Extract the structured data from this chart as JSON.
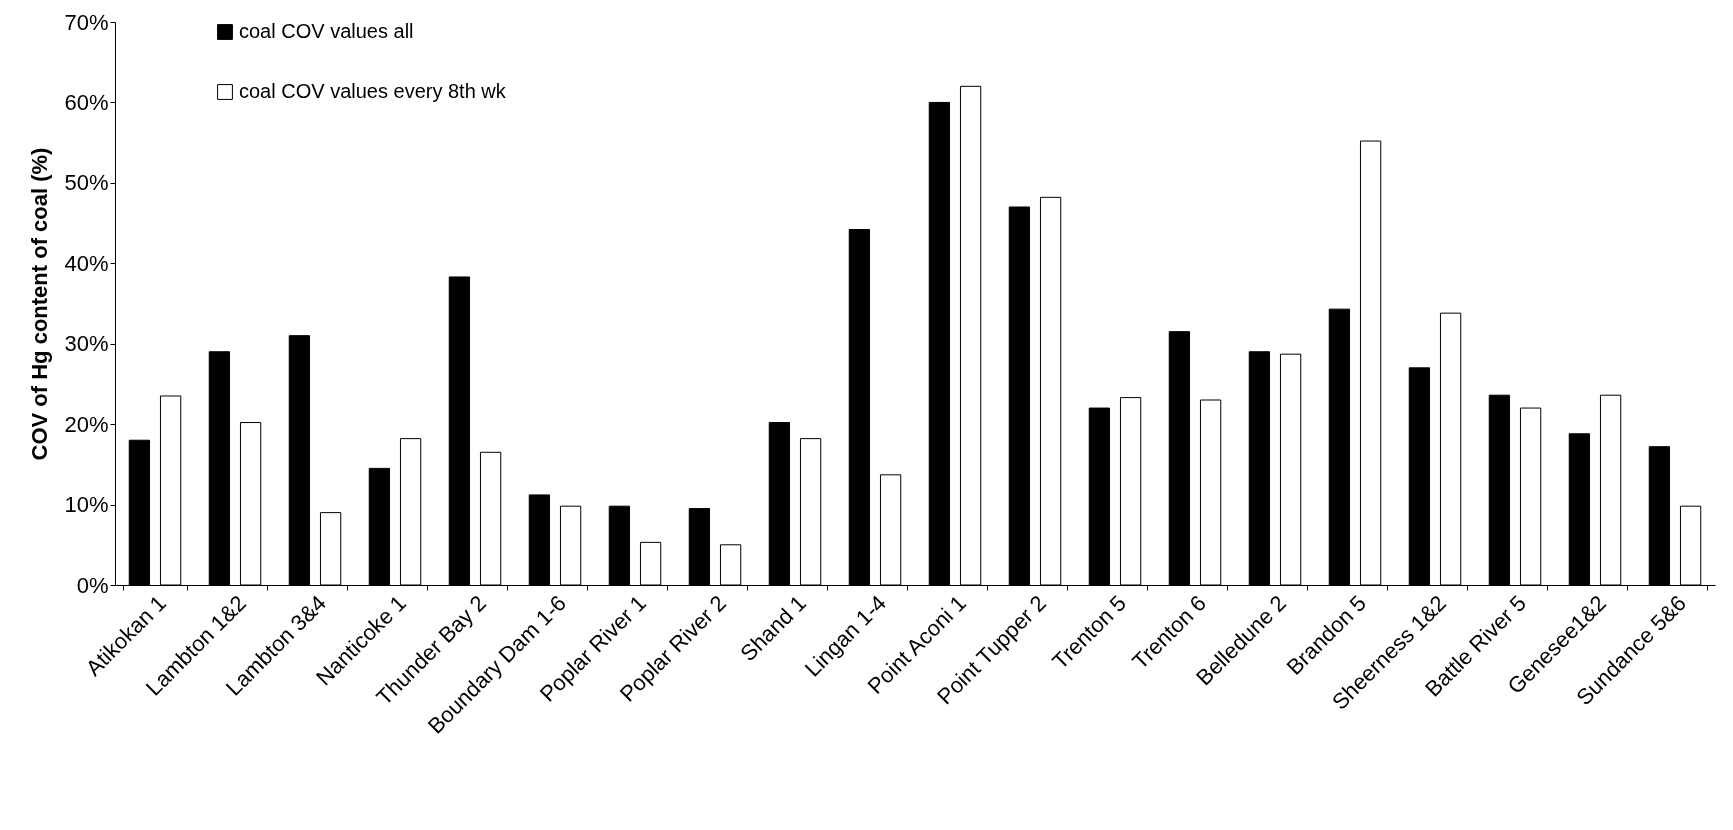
{
  "chart_data": {
    "type": "bar",
    "ylabel": "COV of Hg content of coal (%)",
    "categories": [
      "Atikokan 1",
      "Lambton 1&2",
      "Lambton 3&4",
      "Nanticoke 1",
      "Thunder Bay 2",
      "Boundary Dam 1-6",
      "Poplar River 1",
      "Poplar River 2",
      "Shand 1",
      "Lingan 1-4",
      "Point Aconi 1",
      "Point Tupper 2",
      "Trenton 5",
      "Trenton 6",
      "Belledune 2",
      "Brandon 5",
      "Sheerness 1&2",
      "Battle River 5",
      "Genesee1&2",
      "Sundance 5&6"
    ],
    "series": [
      {
        "name": "coal COV values all",
        "color": "#000000",
        "values": [
          18,
          29,
          31,
          14.5,
          38.3,
          11.2,
          9.8,
          9.5,
          20.2,
          44.2,
          60,
          47,
          22,
          31.5,
          29,
          34.3,
          27,
          23.6,
          18.8,
          17.2
        ]
      },
      {
        "name": "coal COV values every 8th wk",
        "color": "#ffffff",
        "values": [
          23.5,
          20.2,
          9,
          18.2,
          16.5,
          9.8,
          5.3,
          5,
          18.2,
          13.7,
          62,
          48.2,
          23.3,
          23,
          28.7,
          55.2,
          33.8,
          22,
          23.6,
          9.8
        ]
      }
    ],
    "ylim": [
      0,
      70
    ],
    "yticks": [
      {
        "value": 0,
        "label": "0%"
      },
      {
        "value": 10,
        "label": "10%"
      },
      {
        "value": 20,
        "label": "20%"
      },
      {
        "value": 30,
        "label": "30%"
      },
      {
        "value": 40,
        "label": "40%"
      },
      {
        "value": 50,
        "label": "50%"
      },
      {
        "value": 60,
        "label": "60%"
      },
      {
        "value": 70,
        "label": "70%"
      }
    ],
    "grid": false,
    "legend": "top left"
  }
}
